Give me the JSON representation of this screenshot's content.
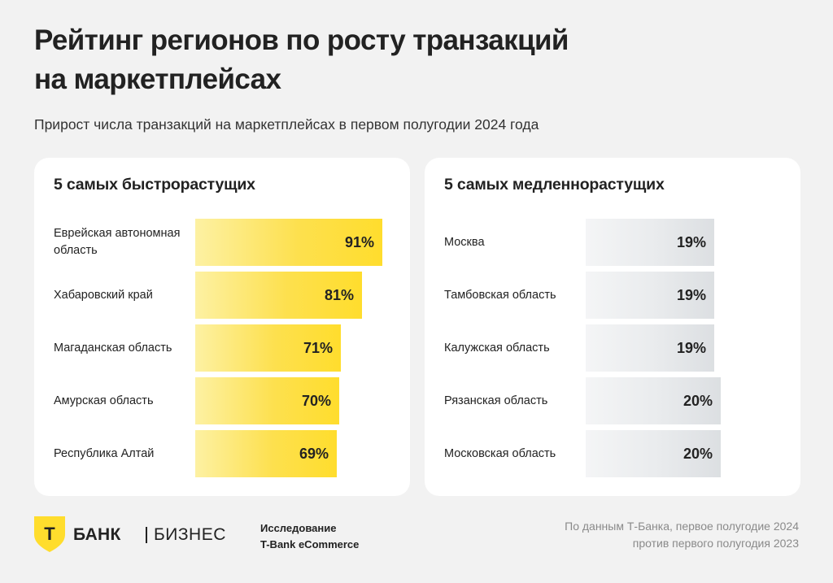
{
  "title_line1": "Рейтинг регионов по росту транзакций",
  "title_line2": "на маркетплейсах",
  "subtitle": "Прирост числа транзакций на маркетплейсах в первом полугодии 2024 года",
  "colors": {
    "fast_bar": "#ffdd2d",
    "slow_bar": "#dcdfe2",
    "background": "#f2f2f2",
    "logo": "#ffdd2d"
  },
  "chart_data": [
    {
      "type": "bar",
      "orientation": "horizontal",
      "title": "5 самых быстрорастущих",
      "unit": "%",
      "categories": [
        "Еврейская автономная область",
        "Хабаровский край",
        "Магаданская область",
        "Амурская область",
        "Республика Алтай"
      ],
      "values": [
        91,
        81,
        71,
        70,
        69
      ],
      "value_labels": [
        "91%",
        "81%",
        "71%",
        "70%",
        "69%"
      ],
      "color": "#ffdd2d"
    },
    {
      "type": "bar",
      "orientation": "horizontal",
      "title": "5 самых медленнорастущих",
      "unit": "%",
      "categories": [
        "Москва",
        "Тамбовская область",
        "Калужская область",
        "Рязанская область",
        "Московская область"
      ],
      "values": [
        19,
        19,
        19,
        20,
        20
      ],
      "value_labels": [
        "19%",
        "19%",
        "19%",
        "20%",
        "20%"
      ],
      "color": "#dcdfe2"
    }
  ],
  "footer": {
    "logo_letter": "Т",
    "bank_name": "БАНК",
    "bank_sub": "БИЗНЕС",
    "study_line1": "Исследование",
    "study_line2": "T-Bank eCommerce",
    "source_line1": "По данным Т-Банка, первое полугодие 2024",
    "source_line2": "против первого полугодия 2023"
  }
}
